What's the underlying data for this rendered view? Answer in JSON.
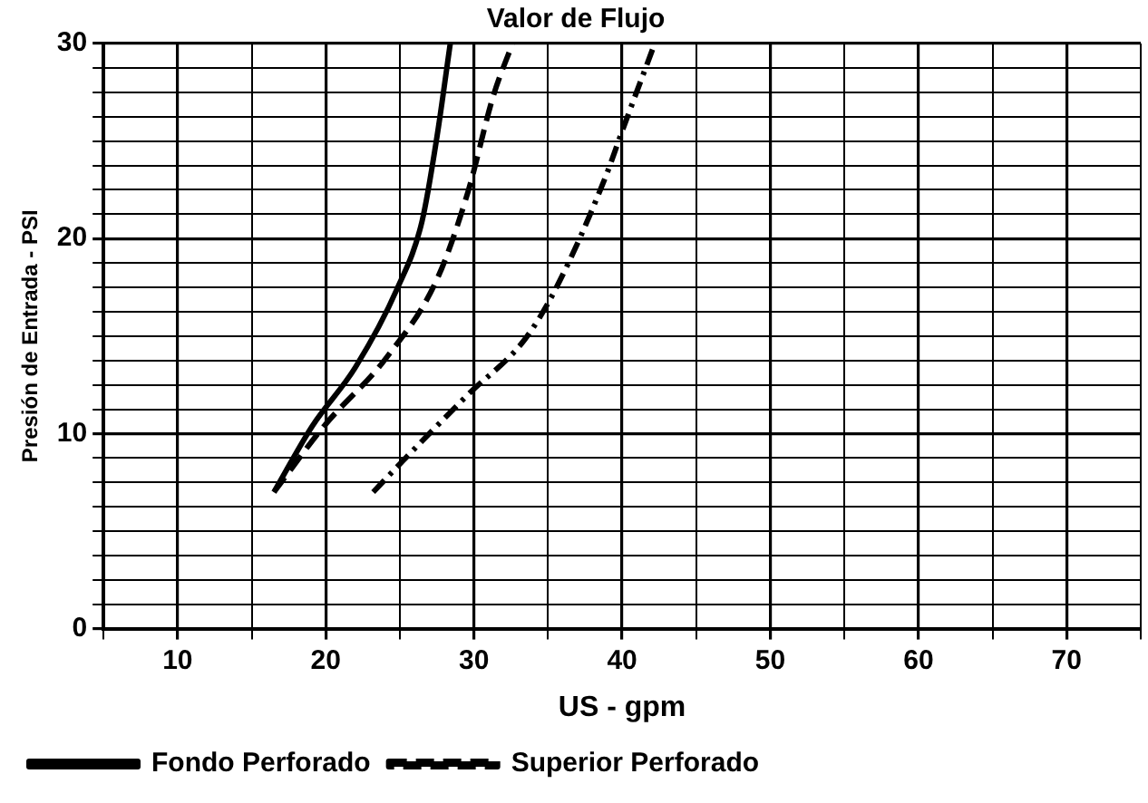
{
  "chart_data": {
    "type": "line",
    "title": "Valor de Flujo",
    "xlabel": "US - gpm",
    "ylabel": "Presión de Entrada - PSI",
    "xlim": [
      5,
      75
    ],
    "xticks": [
      {
        "value": 5,
        "label": null
      },
      10,
      {
        "value": 15,
        "label": null
      },
      20,
      {
        "value": 25,
        "label": null
      },
      30,
      {
        "value": 35,
        "label": null
      },
      40,
      {
        "value": 45,
        "label": null
      },
      50,
      {
        "value": 55,
        "label": null
      },
      60,
      {
        "value": 65,
        "label": null
      },
      70,
      {
        "value": 75,
        "label": null
      }
    ],
    "ylim": [
      0,
      30
    ],
    "yticks": [
      0,
      {
        "value": 1.25,
        "label": null
      },
      {
        "value": 2.5,
        "label": null
      },
      {
        "value": 3.75,
        "label": null
      },
      {
        "value": 5,
        "label": null
      },
      {
        "value": 6.25,
        "label": null
      },
      {
        "value": 7.5,
        "label": null
      },
      {
        "value": 8.75,
        "label": null
      },
      10,
      {
        "value": 11.25,
        "label": null
      },
      {
        "value": 12.5,
        "label": null
      },
      {
        "value": 13.75,
        "label": null
      },
      {
        "value": 15,
        "label": null
      },
      {
        "value": 16.25,
        "label": null
      },
      {
        "value": 17.5,
        "label": null
      },
      {
        "value": 18.75,
        "label": null
      },
      20,
      {
        "value": 21.25,
        "label": null
      },
      {
        "value": 22.5,
        "label": null
      },
      {
        "value": 23.75,
        "label": null
      },
      {
        "value": 25,
        "label": null
      },
      {
        "value": 26.25,
        "label": null
      },
      {
        "value": 27.5,
        "label": null
      },
      {
        "value": 28.75,
        "label": null
      },
      30
    ],
    "grid": true,
    "legend": "bottom",
    "marker": "none",
    "series": [
      {
        "name": "Fondo Perforado",
        "color": "#000000",
        "line_style": "solid",
        "x": [
          16.5,
          19.1,
          22.0,
          24.8,
          26.5,
          27.5,
          28.4
        ],
        "values": [
          7.0,
          10.4,
          13.4,
          17.4,
          20.9,
          25.2,
          30.0
        ]
      },
      {
        "name": "Superior Perforado",
        "color": "#000000",
        "line_style": "dashed",
        "x": [
          16.5,
          19.9,
          24.1,
          27.5,
          29.6,
          31.3,
          32.6
        ],
        "values": [
          7.0,
          10.4,
          13.9,
          17.9,
          22.4,
          27.3,
          30.0
        ]
      },
      {
        "color": "#000000",
        "line_style": "dashdot",
        "x": [
          23.2,
          25.2,
          29.6,
          33.4,
          35.5,
          38.9,
          39.9,
          42.2
        ],
        "values": [
          7.0,
          8.6,
          12.0,
          14.8,
          17.4,
          23.2,
          25.3,
          30.0
        ]
      }
    ]
  }
}
